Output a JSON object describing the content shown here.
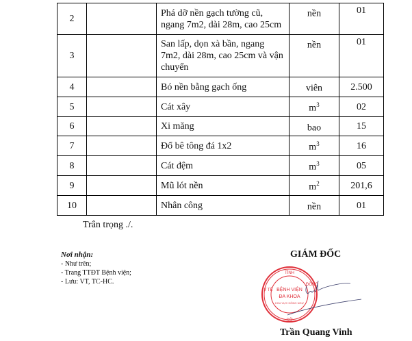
{
  "table": {
    "rows": [
      {
        "no": "2",
        "desc": "Phá dỡ nền gạch tường cũ, ngang 7m2, dài 28m, cao 25cm",
        "unit": "nền",
        "unit_sup": "",
        "qty": "01"
      },
      {
        "no": "3",
        "desc": "San lấp, dọn xà bần, ngang 7m2, dài 28m, cao 25cm và vận chuyển",
        "unit": "nền",
        "unit_sup": "",
        "qty": "01"
      },
      {
        "no": "4",
        "desc": "Bó nền bằng gạch ống",
        "unit": "viên",
        "unit_sup": "",
        "qty": "2.500"
      },
      {
        "no": "5",
        "desc": "Cát xây",
        "unit": "m",
        "unit_sup": "3",
        "qty": "02"
      },
      {
        "no": "6",
        "desc": "Xi măng",
        "unit": "bao",
        "unit_sup": "",
        "qty": "15"
      },
      {
        "no": "7",
        "desc": "Đổ bê tông đá 1x2",
        "unit": "m",
        "unit_sup": "3",
        "qty": "16"
      },
      {
        "no": "8",
        "desc": "Cát đệm",
        "unit": "m",
        "unit_sup": "3",
        "qty": "05"
      },
      {
        "no": "9",
        "desc": "Mũ lót nền",
        "unit": "m",
        "unit_sup": "2",
        "qty": "201,6"
      },
      {
        "no": "10",
        "desc": "Nhân công",
        "unit": "nền",
        "unit_sup": "",
        "qty": "01"
      }
    ]
  },
  "closing": "Trân trọng ./.",
  "recipients": {
    "heading": "Nơi nhận:",
    "items": [
      "- Như trên;",
      "- Trang TTĐT Bệnh viện;",
      "- Lưu: VT, TC-HC."
    ]
  },
  "signature": {
    "title": "GIÁM ĐỐC",
    "name": "Trần Quang Vinh",
    "stamp": {
      "line1": "BỆNH VIỆN",
      "line2": "ĐA KHOA",
      "line3": "KHU VỰC HỒNG NGỰ",
      "ring_top": "TỈNH",
      "ring_left": "Y TẾ",
      "ring_right": "ĐỒNG",
      "ring_bottom": "SỞ",
      "color": "#e0303a"
    }
  }
}
